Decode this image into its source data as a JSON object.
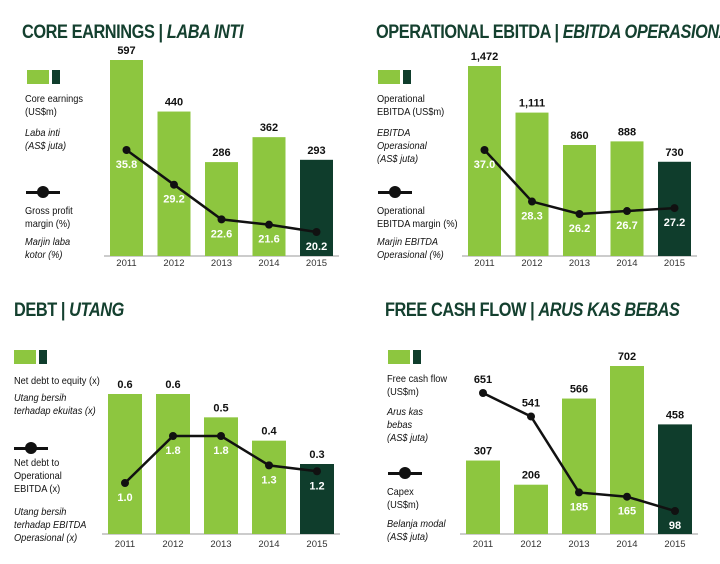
{
  "colors": {
    "bar": "#8dc63f",
    "bar_last": "#0f3d2c",
    "line": "#111111",
    "title": "#14402f",
    "axis": "#999999",
    "bar_label": "#ffffff"
  },
  "chart_data": [
    {
      "id": "core",
      "type": "bar",
      "title": "CORE EARNINGS",
      "title_alt": "LABA INTI",
      "categories": [
        "2011",
        "2012",
        "2013",
        "2014",
        "2015"
      ],
      "bar_series": {
        "name": "Core earnings (US$m)",
        "values": [
          597,
          440,
          286,
          362,
          293
        ],
        "labels": [
          "597",
          "440",
          "286",
          "362",
          "293"
        ]
      },
      "line_series": {
        "name": "Gross profit margin (%)",
        "values": [
          35.8,
          29.2,
          22.6,
          21.6,
          20.2
        ],
        "labels": [
          "35.8",
          "29.2",
          "22.6",
          "21.6",
          "20.2"
        ]
      },
      "legend": {
        "bar_label": "Core earnings\n(US$m)",
        "bar_label_alt": "Laba inti\n(AS$ juta)",
        "line_label": "Gross profit\nmargin (%)",
        "line_label_alt": "Marjin laba\nkotor (%)"
      }
    },
    {
      "id": "ebitda",
      "type": "bar",
      "title": "OPERATIONAL EBITDA",
      "title_alt": "EBITDA OPERASIONAL",
      "categories": [
        "2011",
        "2012",
        "2013",
        "2014",
        "2015"
      ],
      "bar_series": {
        "name": "Operational EBITDA (US$m)",
        "values": [
          1472,
          1111,
          860,
          888,
          730
        ],
        "labels": [
          "1,472",
          "1,111",
          "860",
          "888",
          "730"
        ]
      },
      "line_series": {
        "name": "Operational EBITDA margin (%)",
        "values": [
          37.0,
          28.3,
          26.2,
          26.7,
          27.2
        ],
        "labels": [
          "37.0",
          "28.3",
          "26.2",
          "26.7",
          "27.2"
        ]
      },
      "legend": {
        "bar_label": "Operational\nEBITDA (US$m)",
        "bar_label_alt": "EBITDA\nOperasional\n(AS$ juta)",
        "line_label": "Operational\nEBITDA margin (%)",
        "line_label_alt": "Marjin EBITDA\nOperasional (%)"
      }
    },
    {
      "id": "debt",
      "type": "bar",
      "title": "DEBT",
      "title_alt": "UTANG",
      "categories": [
        "2011",
        "2012",
        "2013",
        "2014",
        "2015"
      ],
      "bar_series": {
        "name": "Net debt to equity (x)",
        "values": [
          0.6,
          0.6,
          0.5,
          0.4,
          0.3
        ],
        "labels": [
          "0.6",
          "0.6",
          "0.5",
          "0.4",
          "0.3"
        ]
      },
      "line_series": {
        "name": "Net debt to Operational EBITDA (x)",
        "values": [
          1.0,
          1.8,
          1.8,
          1.3,
          1.2
        ],
        "labels": [
          "1.0",
          "1.8",
          "1.8",
          "1.3",
          "1.2"
        ]
      },
      "legend": {
        "bar_label": "Net debt to equity (x)",
        "bar_label_alt": "Utang bersih\nterhadap ekuitas (x)",
        "line_label": "Net debt to\nOperational\nEBITDA (x)",
        "line_label_alt": "Utang bersih\nterhadap EBITDA\nOperasional (x)"
      }
    },
    {
      "id": "fcf",
      "type": "bar",
      "title": "FREE CASH FLOW",
      "title_alt": "ARUS KAS BEBAS",
      "categories": [
        "2011",
        "2012",
        "2013",
        "2014",
        "2015"
      ],
      "bar_series": {
        "name": "Free cash flow (US$m)",
        "values": [
          307,
          206,
          566,
          702,
          458
        ],
        "labels": [
          "307",
          "206",
          "566",
          "702",
          "458"
        ]
      },
      "line_series": {
        "name": "Capex (US$m)",
        "values": [
          651,
          541,
          185,
          165,
          98
        ],
        "labels": [
          "651",
          "541",
          "185",
          "165",
          "98"
        ]
      },
      "legend": {
        "bar_label": "Free cash flow\n(US$m)",
        "bar_label_alt": "Arus kas\nbebas\n(AS$ juta)",
        "line_label": "Capex\n(US$m)",
        "line_label_alt": "Belanja modal\n(AS$ juta)"
      }
    }
  ]
}
